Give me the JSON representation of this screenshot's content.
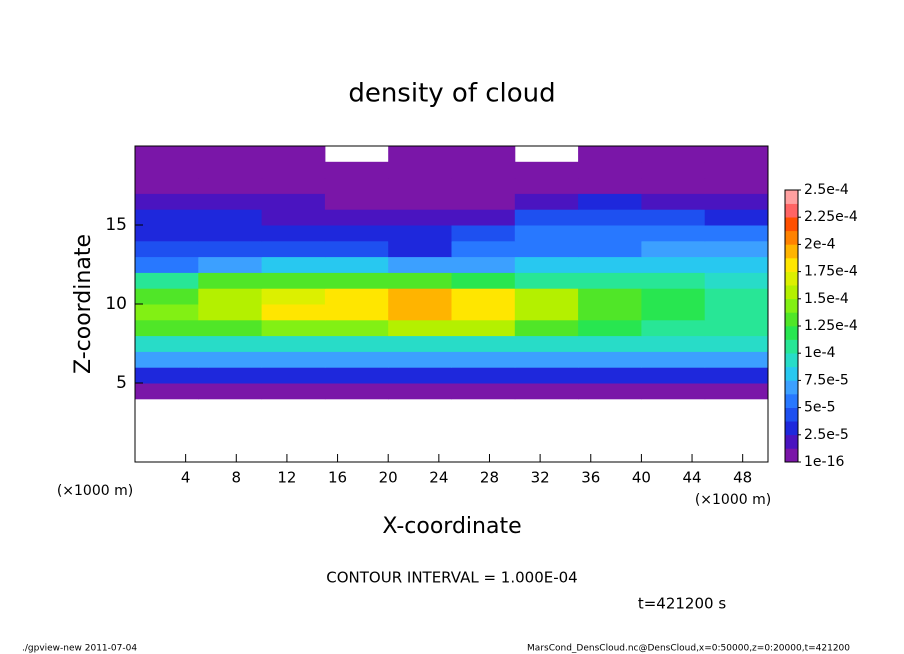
{
  "chart_data": {
    "type": "heatmap",
    "title": "density of cloud",
    "xlabel": "X-coordinate",
    "ylabel": "Z-coordinate",
    "x_unit": "(×1000 m)",
    "y_unit": "(×1000 m)",
    "xlim": [
      0,
      50
    ],
    "ylim": [
      0,
      20
    ],
    "xticks": [
      4,
      8,
      12,
      16,
      20,
      24,
      28,
      32,
      36,
      40,
      44,
      48
    ],
    "yticks": [
      5,
      10,
      15
    ],
    "xbins": [
      0,
      5,
      10,
      15,
      20,
      25,
      30,
      35,
      40,
      45,
      50
    ],
    "ybins": [
      4,
      5,
      6,
      7,
      8,
      9,
      10,
      11,
      12,
      13,
      14,
      15,
      16,
      17,
      18,
      19,
      20
    ],
    "values": [
      [
        1e-05,
        1e-05,
        1e-05,
        1e-05,
        1e-05,
        1e-05,
        1e-05,
        1e-05,
        1e-05,
        1e-05
      ],
      [
        3.5e-05,
        3.5e-05,
        3.5e-05,
        3.5e-05,
        3.5e-05,
        3.5e-05,
        3.5e-05,
        3.5e-05,
        3.5e-05,
        3.5e-05
      ],
      [
        6.5e-05,
        6.5e-05,
        6.5e-05,
        6.5e-05,
        6.5e-05,
        6.5e-05,
        6.5e-05,
        6.5e-05,
        6.5e-05,
        6.5e-05
      ],
      [
        9e-05,
        9e-05,
        9e-05,
        9e-05,
        9e-05,
        9e-05,
        9e-05,
        9e-05,
        9e-05,
        9e-05
      ],
      [
        0.000125,
        0.00013,
        0.00014,
        0.000145,
        0.00015,
        0.00015,
        0.00013,
        0.00012,
        0.00011,
        0.000105
      ],
      [
        0.00014,
        0.00016,
        0.000175,
        0.000185,
        0.00019,
        0.000185,
        0.00015,
        0.00013,
        0.00012,
        0.00011
      ],
      [
        0.000135,
        0.00016,
        0.00017,
        0.00018,
        0.00019,
        0.000185,
        0.000155,
        0.00013,
        0.00012,
        0.00011
      ],
      [
        0.00011,
        0.000125,
        0.00013,
        0.00013,
        0.000135,
        0.00012,
        0.00011,
        0.000105,
        0.0001,
        9.5e-05
      ],
      [
        6e-05,
        7e-05,
        8e-05,
        8e-05,
        7e-05,
        7e-05,
        7.5e-05,
        8e-05,
        8e-05,
        8.5e-05
      ],
      [
        4e-05,
        4e-05,
        4e-05,
        4e-05,
        3.5e-05,
        5e-05,
        6e-05,
        6e-05,
        6.5e-05,
        6.5e-05
      ],
      [
        3e-05,
        3e-05,
        2.5e-05,
        2.5e-05,
        2.5e-05,
        4e-05,
        5e-05,
        5.5e-05,
        5.5e-05,
        5e-05
      ],
      [
        2.5e-05,
        3e-05,
        2e-05,
        2e-05,
        2e-05,
        2e-05,
        4e-05,
        4.5e-05,
        4.5e-05,
        3.5e-05
      ],
      [
        1.5e-05,
        1.5e-05,
        1.5e-05,
        1e-05,
        1e-05,
        1e-05,
        2e-05,
        2.5e-05,
        2e-05,
        1.5e-05
      ],
      [
        1e-05,
        1e-05,
        5e-06,
        5e-06,
        5e-06,
        5e-06,
        1e-05,
        1e-05,
        1e-05,
        1e-05
      ],
      [
        5e-06,
        5e-06,
        5e-06,
        5e-06,
        5e-06,
        5e-06,
        5e-06,
        5e-06,
        5e-06,
        5e-06
      ],
      [
        1e-16,
        1e-16,
        1e-16,
        null,
        1e-16,
        1e-16,
        null,
        1e-16,
        1e-16,
        1e-16
      ]
    ],
    "colorbar_ticks": [
      {
        "value": 1e-16,
        "label": "1e-16"
      },
      {
        "value": 2.5e-05,
        "label": "2.5e-5"
      },
      {
        "value": 5e-05,
        "label": "5e-5"
      },
      {
        "value": 7.5e-05,
        "label": "7.5e-5"
      },
      {
        "value": 0.0001,
        "label": "1e-4"
      },
      {
        "value": 0.000125,
        "label": "1.25e-4"
      },
      {
        "value": 0.00015,
        "label": "1.5e-4"
      },
      {
        "value": 0.000175,
        "label": "1.75e-4"
      },
      {
        "value": 0.0002,
        "label": "2e-4"
      },
      {
        "value": 0.000225,
        "label": "2.25e-4"
      },
      {
        "value": 0.00025,
        "label": "2.5e-4"
      }
    ],
    "colors": [
      "#7a16a8",
      "#4a14c0",
      "#1e28dc",
      "#1e50f0",
      "#2878ff",
      "#3ca0ff",
      "#28c8f0",
      "#28dcc8",
      "#28e696",
      "#28e650",
      "#50e628",
      "#82f014",
      "#b4f000",
      "#dcf000",
      "#ffe600",
      "#ffb400",
      "#ff8200",
      "#ff5000",
      "#ff6464",
      "#ffa0a0"
    ],
    "contour_note": "CONTOUR INTERVAL = 1.000E-04",
    "time_note": "t=421200 s",
    "footer_left": "./gpview-new  2011-07-04",
    "footer_right": "MarsCond_DensCloud.nc@DensCloud,x=0:50000,z=0:20000,t=421200"
  }
}
